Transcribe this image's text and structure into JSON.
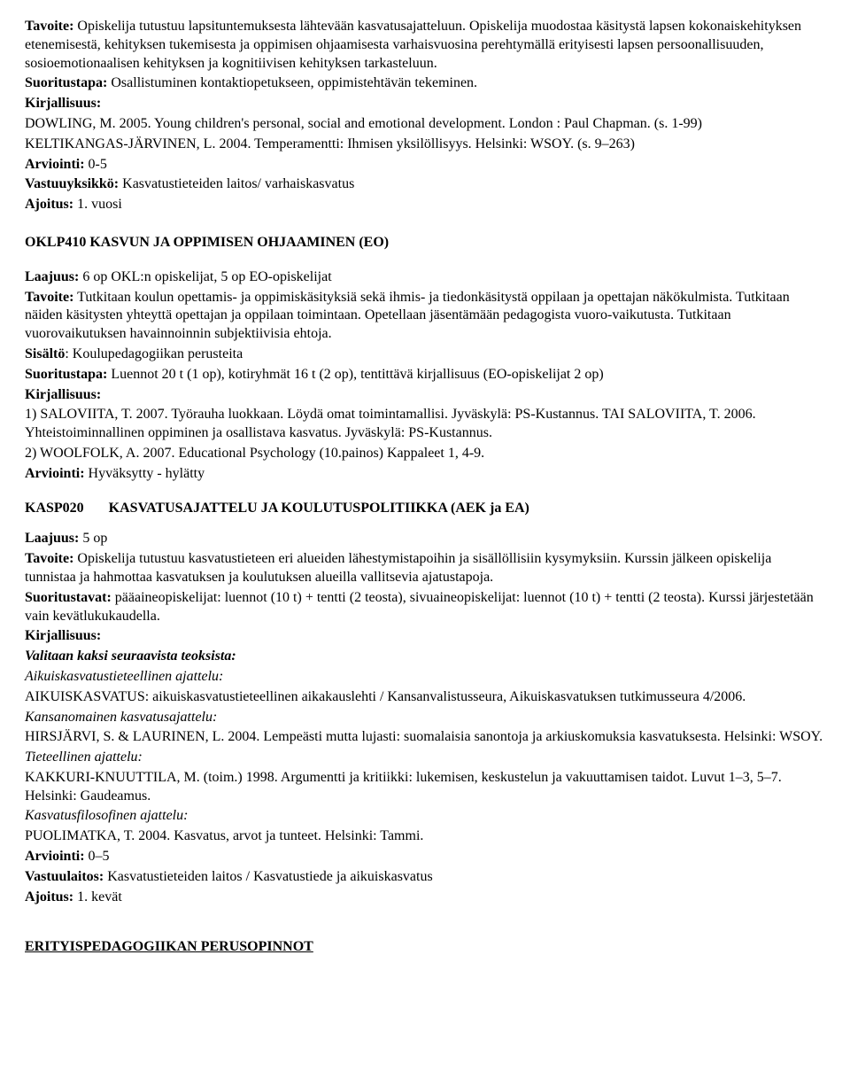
{
  "intro": {
    "tavoite_label": "Tavoite:",
    "tavoite_text": " Opiskelija tutustuu lapsituntemuksesta lähtevään kasvatusajatteluun. Opiskelija muodostaa käsitystä lapsen kokonaiskehityksen etenemisestä, kehityksen tukemisesta ja oppimisen ohjaamisesta varhaisvuosina perehtymällä erityisesti lapsen persoonallisuuden, sosioemotionaalisen kehityksen ja kognitiivisen kehityksen tarkasteluun.",
    "suoritustapa_label": "Suoritustapa:",
    "suoritustapa_text": " Osallistuminen kontaktiopetukseen, oppimistehtävän tekeminen.",
    "kirjallisuus_label": "Kirjallisuus:",
    "ref1": "DOWLING, M. 2005. Young children's personal, social and emotional development. London : Paul Chapman. (s. 1-99)",
    "ref2": "KELTIKANGAS-JÄRVINEN, L. 2004. Temperamentti: Ihmisen yksilöllisyys. Helsinki: WSOY. (s. 9–263)",
    "arviointi_label": "Arviointi:",
    "arviointi_text": " 0-5",
    "vastuu_label": "Vastuuyksikkö:",
    "vastuu_text": " Kasvatustieteiden laitos/ varhaiskasvatus",
    "ajoitus_label": "Ajoitus:",
    "ajoitus_text": " 1. vuosi"
  },
  "oklp410": {
    "title": "OKLP410 KASVUN JA OPPIMISEN OHJAAMINEN (EO)",
    "laajuus_label": "Laajuus:",
    "laajuus_text": " 6 op OKL:n opiskelijat, 5 op EO-opiskelijat",
    "tavoite_label": "Tavoite:",
    "tavoite_text": " Tutkitaan koulun opettamis- ja oppimiskäsityksiä sekä ihmis- ja tiedonkäsitystä oppilaan ja opettajan näkökulmista. Tutkitaan näiden käsitysten yhteyttä opettajan ja oppilaan toimintaan. Opetellaan jäsentämään pedagogista vuoro-vaikutusta. Tutkitaan vuorovaikutuksen havainnoinnin subjektiivisia ehtoja.",
    "sisalto_label": "Sisältö",
    "sisalto_text": ": Koulupedagogiikan perusteita",
    "suoritustapa_label": "Suoritustapa:",
    "suoritustapa_text": " Luennot 20 t (1 op), kotiryhmät 16 t (2 op), tentittävä kirjallisuus (EO-opiskelijat 2 op)",
    "kirjallisuus_label": "Kirjallisuus:",
    "ref1": "1) SALOVIITA, T. 2007. Työrauha luokkaan. Löydä omat toimintamallisi. Jyväskylä: PS-Kustannus. TAI SALOVIITA, T. 2006. Yhteistoiminnallinen oppiminen ja osallistava kasvatus. Jyväskylä: PS-Kustannus.",
    "ref2": "2) WOOLFOLK, A. 2007. Educational Psychology (10.painos) Kappaleet 1, 4-9.",
    "arviointi_label": "Arviointi:",
    "arviointi_text": " Hyväksytty - hylätty"
  },
  "kasp020": {
    "code": "KASP020",
    "title": "KASVATUSAJATTELU JA KOULUTUSPOLITIIKKA (AEK ja EA)",
    "laajuus_label": "Laajuus:",
    "laajuus_text": " 5 op",
    "tavoite_label": "Tavoite:",
    "tavoite_text": " Opiskelija tutustuu kasvatustieteen eri alueiden lähestymistapoihin ja sisällöllisiin kysymyksiin. Kurssin jälkeen opiskelija tunnistaa ja hahmottaa kasvatuksen ja koulutuksen alueilla vallitsevia ajatustapoja.",
    "suoritustavat_label": "Suoritustavat:",
    "suoritustavat_text": " pääaineopiskelijat: luennot (10 t) + tentti (2 teosta), sivuaineopiskelijat: luennot (10 t) + tentti (2 teosta). Kurssi järjestetään vain kevätlukukaudella.",
    "kirjallisuus_label": "Kirjallisuus:",
    "valitaan": "Valitaan kaksi seuraavista teoksista:",
    "cat1": "Aikuiskasvatustieteellinen ajattelu:",
    "cat1_ref": "AIKUISKASVATUS: aikuiskasvatustieteellinen aikakauslehti / Kansanvalistusseura, Aikuiskasvatuksen tutkimusseura 4/2006.",
    "cat2": "Kansanomainen kasvatusajattelu:",
    "cat2_ref": "HIRSJÄRVI, S. & LAURINEN, L. 2004. Lempeästi mutta lujasti: suomalaisia sanontoja ja arkiuskomuksia kasvatuksesta. Helsinki: WSOY.",
    "cat3": "Tieteellinen ajattelu:",
    "cat3_ref": "KAKKURI-KNUUTTILA, M. (toim.) 1998. Argumentti ja kritiikki: lukemisen, keskustelun ja vakuuttamisen taidot. Luvut 1–3, 5–7. Helsinki: Gaudeamus.",
    "cat4": "Kasvatusfilosofinen ajattelu:",
    "cat4_ref": "PUOLIMATKA, T. 2004. Kasvatus, arvot ja tunteet. Helsinki: Tammi.",
    "arviointi_label": "Arviointi:",
    "arviointi_text": " 0–5",
    "vastuu_label": "Vastuulaitos:",
    "vastuu_text": " Kasvatustieteiden laitos / Kasvatustiede ja aikuiskasvatus",
    "ajoitus_label": "Ajoitus:",
    "ajoitus_text": " 1. kevät"
  },
  "footer": {
    "heading": "ERITYISPEDAGOGIIKAN PERUSOPINNOT"
  }
}
